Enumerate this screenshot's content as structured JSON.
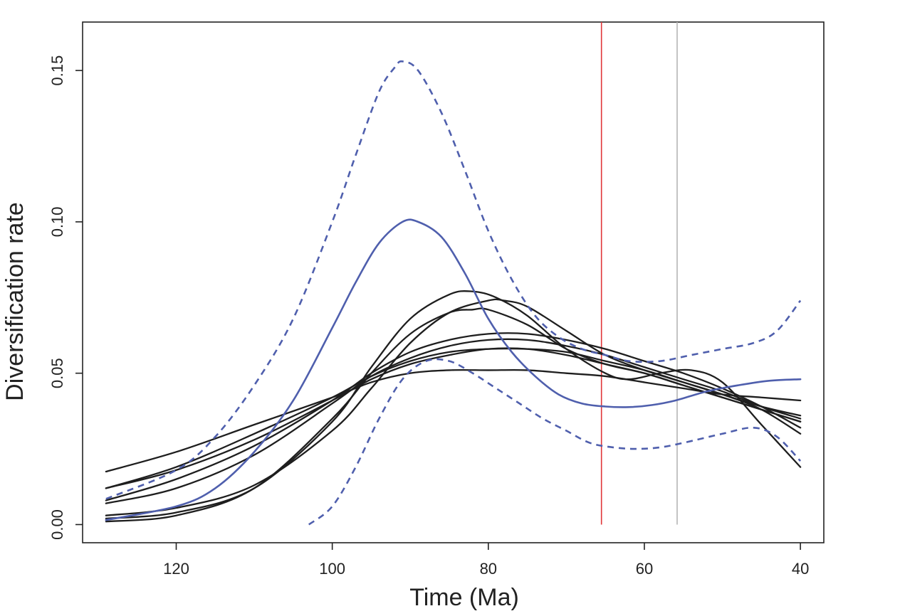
{
  "chart_data": {
    "type": "line",
    "title": "",
    "xlabel": "Time (Ma)",
    "ylabel": "Diversification rate",
    "xlim": [
      132,
      37
    ],
    "ylim": [
      -0.006,
      0.166
    ],
    "x_reversed": true,
    "xticks": [
      120,
      100,
      80,
      60,
      40
    ],
    "xtick_labels": [
      "120",
      "100",
      "80",
      "60",
      "40"
    ],
    "yticks": [
      0.0,
      0.05,
      0.1,
      0.15
    ],
    "ytick_labels": [
      "0.00",
      "0.05",
      "0.10",
      "0.15"
    ],
    "grid": false,
    "legend": "none",
    "vlines": [
      {
        "x": 65.5,
        "color": "#e0373a"
      },
      {
        "x": 55.8,
        "color": "#b5b5b5"
      }
    ],
    "colors": {
      "mean": "#4f5fad",
      "ci": "#4f5fad",
      "sample": "#1e1e1e"
    },
    "series": [
      {
        "role": "mean",
        "style": "solid",
        "x": [
          129,
          120,
          115,
          110,
          105,
          100,
          97,
          94,
          91,
          89,
          86,
          83,
          80,
          77,
          74,
          71,
          68,
          65,
          62,
          59,
          56,
          52,
          48,
          44,
          40
        ],
        "y": [
          0.0015,
          0.006,
          0.012,
          0.024,
          0.041,
          0.065,
          0.08,
          0.093,
          0.1,
          0.1,
          0.095,
          0.083,
          0.068,
          0.057,
          0.049,
          0.043,
          0.04,
          0.039,
          0.0388,
          0.0395,
          0.041,
          0.044,
          0.046,
          0.0475,
          0.048
        ]
      },
      {
        "role": "ci-upper",
        "style": "dashed",
        "x": [
          129,
          120,
          115,
          110,
          105,
          100,
          97,
          94,
          92,
          91,
          89,
          86,
          83,
          80,
          77,
          74,
          71,
          68,
          65,
          62,
          58,
          54,
          50,
          46,
          43,
          40
        ],
        "y": [
          0.0085,
          0.018,
          0.029,
          0.046,
          0.068,
          0.1,
          0.122,
          0.143,
          0.151,
          0.153,
          0.15,
          0.136,
          0.117,
          0.097,
          0.081,
          0.069,
          0.062,
          0.058,
          0.056,
          0.054,
          0.054,
          0.056,
          0.058,
          0.06,
          0.064,
          0.074
        ]
      },
      {
        "role": "ci-lower",
        "style": "dashed",
        "x": [
          103,
          100,
          97,
          94,
          91,
          88,
          85,
          82,
          79,
          76,
          73,
          70,
          67,
          64,
          61,
          58,
          55,
          50,
          46,
          43,
          40
        ],
        "y": [
          0.0,
          0.006,
          0.019,
          0.035,
          0.048,
          0.054,
          0.054,
          0.05,
          0.045,
          0.04,
          0.035,
          0.031,
          0.027,
          0.0255,
          0.025,
          0.0255,
          0.027,
          0.03,
          0.032,
          0.029,
          0.021
        ]
      },
      {
        "role": "sample",
        "style": "solid",
        "x": [
          129,
          120,
          110,
          100,
          95,
          90,
          85,
          82,
          79,
          75,
          70,
          65,
          62,
          58,
          54,
          50,
          45,
          40
        ],
        "y": [
          0.002,
          0.004,
          0.012,
          0.034,
          0.052,
          0.068,
          0.076,
          0.077,
          0.075,
          0.069,
          0.058,
          0.05,
          0.048,
          0.05,
          0.051,
          0.047,
          0.033,
          0.019
        ]
      },
      {
        "role": "sample",
        "style": "solid",
        "x": [
          129,
          120,
          110,
          100,
          95,
          90,
          85,
          80,
          78,
          75,
          70,
          65,
          60,
          55,
          50,
          45,
          40
        ],
        "y": [
          0.003,
          0.0055,
          0.013,
          0.031,
          0.045,
          0.06,
          0.07,
          0.074,
          0.074,
          0.072,
          0.064,
          0.056,
          0.051,
          0.047,
          0.043,
          0.038,
          0.03
        ]
      },
      {
        "role": "sample",
        "style": "solid",
        "x": [
          129,
          120,
          110,
          100,
          95,
          90,
          85,
          82,
          80,
          75,
          70,
          65,
          60,
          55,
          50,
          45,
          40
        ],
        "y": [
          0.001,
          0.003,
          0.012,
          0.035,
          0.05,
          0.063,
          0.07,
          0.071,
          0.071,
          0.066,
          0.058,
          0.053,
          0.05,
          0.046,
          0.042,
          0.038,
          0.034
        ]
      },
      {
        "role": "sample",
        "style": "solid",
        "x": [
          129,
          120,
          110,
          100,
          95,
          90,
          85,
          80,
          75,
          70,
          65,
          60,
          55,
          50,
          45,
          40
        ],
        "y": [
          0.008,
          0.015,
          0.026,
          0.041,
          0.05,
          0.057,
          0.061,
          0.063,
          0.063,
          0.061,
          0.058,
          0.054,
          0.05,
          0.045,
          0.039,
          0.032
        ]
      },
      {
        "role": "sample",
        "style": "solid",
        "x": [
          129,
          120,
          110,
          100,
          95,
          90,
          85,
          80,
          75,
          70,
          65,
          60,
          55,
          50,
          45,
          40
        ],
        "y": [
          0.007,
          0.012,
          0.023,
          0.04,
          0.049,
          0.055,
          0.059,
          0.061,
          0.061,
          0.059,
          0.056,
          0.052,
          0.048,
          0.044,
          0.039,
          0.035
        ]
      },
      {
        "role": "sample",
        "style": "solid",
        "x": [
          129,
          120,
          110,
          100,
          95,
          90,
          85,
          80,
          75,
          70,
          65,
          60,
          55,
          50,
          45,
          40
        ],
        "y": [
          0.012,
          0.019,
          0.03,
          0.042,
          0.049,
          0.054,
          0.057,
          0.058,
          0.058,
          0.057,
          0.054,
          0.051,
          0.047,
          0.043,
          0.039,
          0.036
        ]
      },
      {
        "role": "sample",
        "style": "solid",
        "x": [
          129,
          120,
          110,
          100,
          95,
          90,
          85,
          80,
          75,
          70,
          65,
          60,
          55,
          50,
          45,
          40
        ],
        "y": [
          0.012,
          0.018,
          0.028,
          0.041,
          0.048,
          0.053,
          0.056,
          0.058,
          0.058,
          0.056,
          0.053,
          0.05,
          0.046,
          0.042,
          0.038,
          0.034
        ]
      },
      {
        "role": "sample",
        "style": "solid",
        "x": [
          129,
          120,
          110,
          100,
          95,
          90,
          85,
          80,
          75,
          70,
          65,
          60,
          55,
          50,
          45,
          40
        ],
        "y": [
          0.0175,
          0.024,
          0.033,
          0.042,
          0.047,
          0.05,
          0.051,
          0.051,
          0.051,
          0.05,
          0.049,
          0.047,
          0.045,
          0.043,
          0.042,
          0.041
        ]
      }
    ]
  }
}
